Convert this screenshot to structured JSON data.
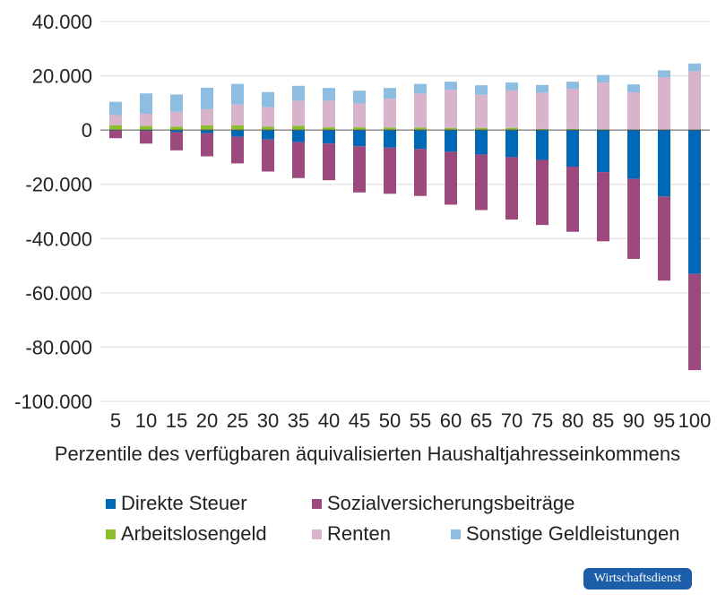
{
  "chart_data": {
    "type": "bar",
    "stacked": true,
    "title": "",
    "xlabel": "Perzentile des verfügbaren äquivalisierten Haushaltjahresseinkommens",
    "ylabel": "",
    "ylim": [
      -100000,
      40000
    ],
    "yticks": [
      40000,
      20000,
      0,
      -20000,
      -40000,
      -60000,
      -80000,
      -100000
    ],
    "ytick_labels": [
      "40.000",
      "20.000",
      "0",
      "-20.000",
      "-40.000",
      "-60.000",
      "-80.000",
      "-100.000"
    ],
    "categories": [
      "5",
      "10",
      "15",
      "20",
      "25",
      "30",
      "35",
      "40",
      "45",
      "50",
      "55",
      "60",
      "65",
      "70",
      "75",
      "80",
      "85",
      "90",
      "95",
      "100"
    ],
    "grid": "horizontal",
    "legend_position": "bottom",
    "series": [
      {
        "name": "Direkte Steuer",
        "color": "#0068b4",
        "values": [
          0,
          -300,
          -800,
          -1200,
          -2500,
          -3500,
          -4500,
          -5000,
          -6000,
          -6500,
          -7000,
          -8000,
          -9000,
          -10000,
          -11000,
          -13500,
          -15500,
          -18000,
          -24500,
          -53000
        ]
      },
      {
        "name": "Sozialversicherungsbeiträge",
        "color": "#9c4a7e",
        "values": [
          -3000,
          -4700,
          -6700,
          -8500,
          -9800,
          -11800,
          -13200,
          -13500,
          -17000,
          -17000,
          -17300,
          -19500,
          -20500,
          -23000,
          -24000,
          -24000,
          -25500,
          -29500,
          -31000,
          -35500
        ]
      },
      {
        "name": "Arbeitslosengeld",
        "color": "#8cbf2b",
        "values": [
          1800,
          1500,
          1300,
          1700,
          1700,
          1200,
          1600,
          1000,
          1000,
          900,
          900,
          800,
          800,
          800,
          400,
          400,
          300,
          200,
          200,
          0
        ]
      },
      {
        "name": "Renten",
        "color": "#d7b3cc",
        "values": [
          3700,
          4500,
          5400,
          6000,
          7700,
          7300,
          9200,
          9800,
          8800,
          10600,
          12500,
          14000,
          12200,
          13800,
          13400,
          14700,
          17200,
          13700,
          19200,
          21700
        ]
      },
      {
        "name": "Sonstige Geldleistungen",
        "color": "#8dbde0",
        "values": [
          4900,
          7500,
          6400,
          7900,
          7600,
          5500,
          5500,
          4700,
          4700,
          4000,
          3600,
          3000,
          3500,
          2900,
          2800,
          2700,
          2800,
          2900,
          2600,
          2800
        ]
      }
    ]
  },
  "branding": {
    "badge_text": "Wirtschaftsdienst",
    "badge_color": "#1d5ea8"
  }
}
